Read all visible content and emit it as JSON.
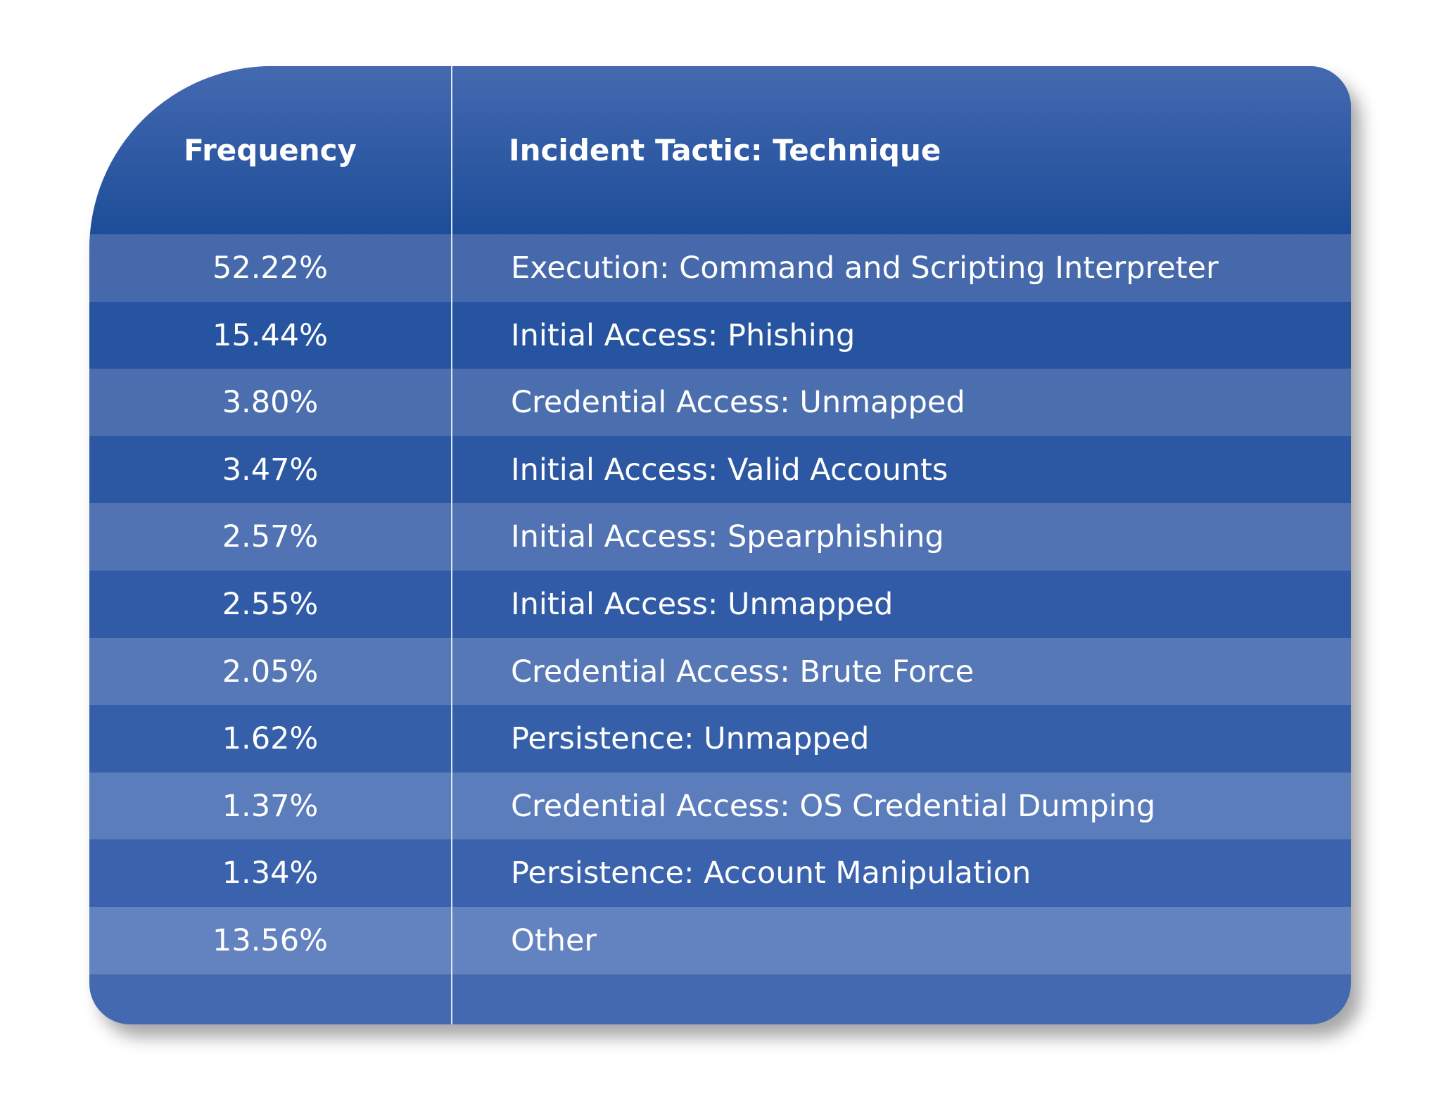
{
  "table": {
    "headers": [
      "Frequency",
      "Incident Tactic: Technique"
    ],
    "rows": [
      [
        "52.22%",
        "Execution: Command and Scripting Interpreter"
      ],
      [
        "15.44%",
        "Initial Access: Phishing"
      ],
      [
        "3.80%",
        "Credential Access: Unmapped"
      ],
      [
        "3.47%",
        "Initial Access: Valid Accounts"
      ],
      [
        "2.57%",
        "Initial Access: Spearphishing"
      ],
      [
        "2.55%",
        "Initial Access: Unmapped"
      ],
      [
        "2.05%",
        "Credential Access: Brute Force"
      ],
      [
        "1.62%",
        "Persistence: Unmapped"
      ],
      [
        "1.37%",
        "Credential Access: OS Credential Dumping"
      ],
      [
        "1.34%",
        "Persistence: Account Manipulation"
      ],
      [
        "13.56%",
        "Other"
      ]
    ]
  }
}
